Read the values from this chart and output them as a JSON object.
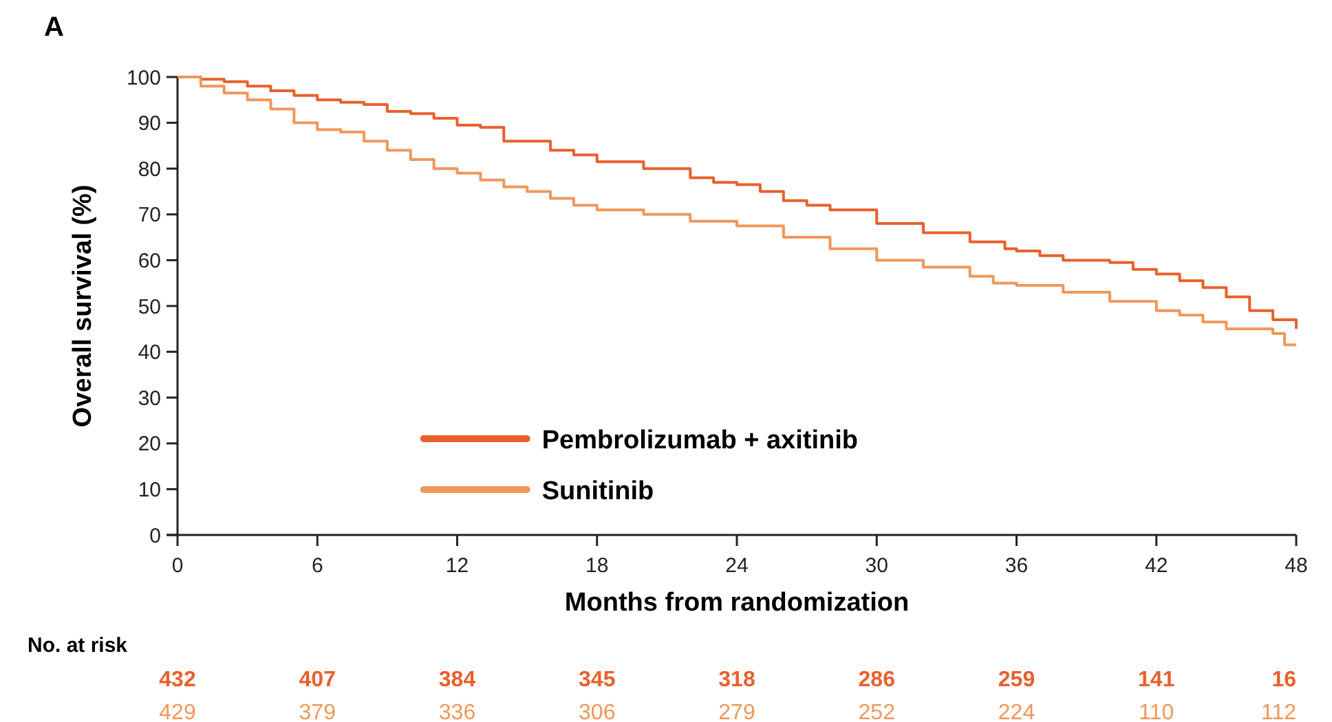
{
  "chart_data": {
    "type": "step",
    "title": "A",
    "xlabel": "Months from randomization",
    "ylabel": "Overall survival (%)",
    "xlim": [
      0,
      48
    ],
    "xticks": [
      0,
      6,
      12,
      18,
      24,
      30,
      36,
      42,
      48
    ],
    "ylim": [
      0,
      100
    ],
    "yticks": [
      0,
      10,
      20,
      30,
      40,
      50,
      60,
      70,
      80,
      90,
      100
    ],
    "grid": false,
    "legend": "bottom",
    "marker": "none",
    "line_style": "solid",
    "series": [
      {
        "name": "Pembrolizumab + axitinib",
        "color": "#e8602c",
        "x": [
          0,
          1,
          2,
          3,
          4,
          5,
          6,
          7,
          8,
          9,
          10,
          11,
          12,
          13,
          14,
          16,
          17,
          18,
          20,
          22,
          23,
          24,
          25,
          26,
          27,
          28,
          30,
          32,
          34,
          35.5,
          36,
          37,
          38,
          40,
          41,
          42,
          43,
          44,
          45,
          46,
          47,
          48
        ],
        "values": [
          100,
          99.5,
          99,
          98,
          97,
          96,
          95,
          94.5,
          94,
          92.5,
          92,
          91,
          89.5,
          89,
          86,
          84,
          83,
          81.5,
          80,
          78,
          77,
          76.5,
          75,
          73,
          72,
          71,
          68,
          66,
          64,
          62.5,
          62,
          61,
          60,
          59.5,
          58,
          57,
          55.5,
          54,
          52,
          49,
          47,
          45
        ]
      },
      {
        "name": "Sunitinib",
        "color": "#f0975a",
        "x": [
          0,
          1,
          2,
          3,
          4,
          5,
          6,
          7,
          8,
          9,
          10,
          11,
          12,
          13,
          14,
          15,
          16,
          17,
          18,
          20,
          22,
          24,
          26,
          28,
          30,
          32,
          34,
          35,
          36,
          38,
          40,
          42,
          43,
          44,
          45,
          46,
          47,
          47.5,
          48
        ],
        "values": [
          100,
          98,
          96.5,
          95,
          93,
          90,
          88.5,
          88,
          86,
          84,
          82,
          80,
          79,
          77.5,
          76,
          75,
          73.5,
          72,
          71,
          70,
          68.5,
          67.5,
          65,
          62.5,
          60,
          58.5,
          56.5,
          55,
          54.5,
          53,
          51,
          49,
          48,
          46.5,
          45,
          45,
          44,
          41.5,
          41.5
        ]
      }
    ],
    "annotations": [
      "No. at risk",
      "432",
      "407",
      "384",
      "345",
      "318",
      "286",
      "259",
      "141",
      "16",
      "429",
      "379",
      "336",
      "306",
      "279",
      "252",
      "224",
      "110",
      "112"
    ]
  }
}
